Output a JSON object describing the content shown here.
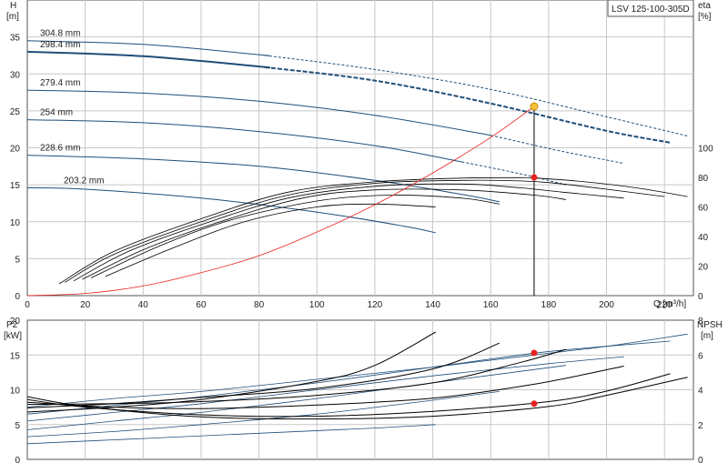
{
  "title_box": "LSV 125-100-305D",
  "top": {
    "y_left_label_1": "H",
    "y_left_label_2": "[m]",
    "y_right_label_1": "eta",
    "y_right_label_2": "[%]",
    "x_label": "Q [m³/h]"
  },
  "bottom": {
    "y_left_label_1": "P2",
    "y_left_label_2": "[kW]",
    "y_right_label_1": "NPSH",
    "y_right_label_2": "[m]"
  },
  "colors": {
    "head_curve": "#1f4e79",
    "duty_line": "#e8221f",
    "efficiency_curve": "#000000",
    "duty_point_fill": "#f6c23e",
    "grid": "#c8c8c8"
  },
  "chart_data": [
    {
      "type": "line",
      "panel": "head-efficiency",
      "xlim": [
        0,
        230
      ],
      "x_ticks": [
        0,
        20,
        40,
        60,
        80,
        100,
        120,
        140,
        160,
        180,
        200,
        220
      ],
      "ylim": [
        0,
        40
      ],
      "y_ticks": [
        0,
        5,
        10,
        15,
        20,
        25,
        30,
        35
      ],
      "y2lim": [
        0,
        200
      ],
      "y2_ticks": [
        0,
        20,
        40,
        60,
        80,
        100
      ],
      "grid": true,
      "series": [
        {
          "name": "304.8 mm",
          "kind": "head",
          "x": [
            0,
            40,
            80,
            120,
            160,
            200,
            228
          ],
          "y": [
            34.5,
            34.0,
            32.6,
            30.6,
            27.9,
            24.2,
            21.6
          ],
          "solid_until": 82
        },
        {
          "name": "298.4 mm",
          "kind": "head",
          "x": [
            0,
            40,
            80,
            120,
            160,
            200,
            222
          ],
          "y": [
            33.0,
            32.4,
            31.0,
            29.1,
            26.0,
            22.3,
            20.7
          ],
          "solid_until": 82,
          "highlight": true
        },
        {
          "name": "279.4 mm",
          "kind": "head",
          "x": [
            0,
            40,
            80,
            120,
            160,
            185,
            206
          ],
          "y": [
            27.8,
            27.4,
            26.3,
            24.4,
            21.7,
            19.5,
            17.9
          ],
          "solid_until": 160
        },
        {
          "name": "254 mm",
          "kind": "head",
          "x": [
            0,
            40,
            80,
            120,
            150,
            170,
            186
          ],
          "y": [
            23.8,
            23.4,
            22.2,
            20.3,
            18.1,
            16.5,
            15.0
          ],
          "solid_until": 150
        },
        {
          "name": "228.6 mm",
          "kind": "head",
          "x": [
            0,
            40,
            80,
            120,
            150,
            163
          ],
          "y": [
            19.0,
            18.5,
            17.5,
            15.6,
            13.7,
            12.7
          ]
        },
        {
          "name": "203.2 mm",
          "kind": "head",
          "x": [
            0,
            20,
            60,
            100,
            130,
            141
          ],
          "y": [
            14.6,
            14.4,
            13.2,
            11.3,
            9.4,
            8.5
          ]
        },
        {
          "kind": "efficiency",
          "x": [
            11,
            30,
            60,
            90,
            120,
            150,
            170,
            175,
            190,
            210,
            228
          ],
          "y": [
            8,
            30,
            52,
            70,
            77,
            79.5,
            79.8,
            79.6,
            77.5,
            73,
            67
          ]
        },
        {
          "kind": "efficiency",
          "x": [
            13,
            30,
            60,
            90,
            120,
            150,
            170,
            180,
            200,
            220
          ],
          "y": [
            9,
            28,
            50,
            68,
            76,
            78,
            77.6,
            76.5,
            72,
            67
          ]
        },
        {
          "kind": "efficiency",
          "x": [
            16,
            35,
            60,
            90,
            120,
            150,
            170,
            185,
            206
          ],
          "y": [
            10,
            30,
            48,
            66,
            74,
            75.5,
            73,
            70,
            66
          ]
        },
        {
          "kind": "efficiency",
          "x": [
            19,
            40,
            65,
            95,
            120,
            150,
            175,
            186
          ],
          "y": [
            11,
            31,
            49,
            66,
            71.5,
            71.5,
            68,
            65
          ]
        },
        {
          "kind": "efficiency",
          "x": [
            22,
            45,
            70,
            100,
            125,
            150,
            163
          ],
          "y": [
            12,
            33,
            51,
            64,
            68,
            66,
            62
          ]
        },
        {
          "kind": "efficiency",
          "x": [
            27,
            50,
            75,
            100,
            120,
            141
          ],
          "y": [
            13,
            32,
            50,
            60,
            62,
            60
          ]
        },
        {
          "kind": "system-curve",
          "x": [
            0,
            20,
            40,
            60,
            80,
            100,
            120,
            140,
            160,
            175
          ],
          "y": [
            0,
            0.3,
            1.3,
            3.1,
            5.4,
            8.6,
            12.3,
            16.6,
            21.4,
            25.6
          ]
        },
        {
          "kind": "duty-point",
          "x": [
            175
          ],
          "y": [
            25.6
          ],
          "eta": 80
        }
      ]
    },
    {
      "type": "line",
      "panel": "power-npsh",
      "xlim": [
        0,
        230
      ],
      "x_ticks": [
        0,
        20,
        40,
        60,
        80,
        100,
        120,
        140,
        160,
        180,
        200,
        220
      ],
      "ylim": [
        0,
        20
      ],
      "y_ticks": [
        0,
        5,
        10,
        15,
        20
      ],
      "y2lim": [
        0,
        8
      ],
      "y2_ticks": [
        0,
        2,
        4,
        6,
        8
      ],
      "grid": true,
      "series": [
        {
          "kind": "npsh",
          "x": [
            0,
            30,
            60,
            100,
            140,
            175,
            200,
            228
          ],
          "y": [
            3.0,
            3.5,
            3.9,
            4.6,
            5.3,
            6.0,
            6.5,
            7.2
          ]
        },
        {
          "kind": "npsh",
          "x": [
            0,
            30,
            60,
            100,
            140,
            175,
            200,
            222
          ],
          "y": [
            2.6,
            3.1,
            3.6,
            4.4,
            5.3,
            6.1,
            6.5,
            6.8
          ]
        },
        {
          "kind": "npsh",
          "x": [
            0,
            30,
            60,
            100,
            140,
            180,
            206
          ],
          "y": [
            2.2,
            2.7,
            3.2,
            4.0,
            4.8,
            5.5,
            5.9
          ]
        },
        {
          "kind": "npsh",
          "x": [
            0,
            30,
            60,
            100,
            140,
            186
          ],
          "y": [
            1.7,
            2.2,
            2.7,
            3.5,
            4.4,
            5.4
          ]
        },
        {
          "kind": "npsh",
          "x": [
            0,
            30,
            60,
            100,
            140,
            163
          ],
          "y": [
            1.3,
            1.6,
            2.0,
            2.6,
            3.4,
            3.9
          ]
        },
        {
          "kind": "npsh",
          "x": [
            0,
            40,
            80,
            120,
            141
          ],
          "y": [
            0.9,
            1.2,
            1.5,
            1.8,
            2.0
          ]
        },
        {
          "kind": "power",
          "x": [
            0,
            20,
            60,
            100,
            140,
            180,
            200,
            228
          ],
          "y": [
            9.0,
            7.6,
            6.1,
            5.8,
            6.2,
            7.6,
            9.2,
            11.8
          ]
        },
        {
          "kind": "power",
          "x": [
            0,
            20,
            60,
            100,
            140,
            180,
            200,
            222
          ],
          "y": [
            8.6,
            7.5,
            6.4,
            6.2,
            6.9,
            8.3,
            9.8,
            12.3
          ]
        },
        {
          "kind": "power",
          "x": [
            0,
            30,
            60,
            100,
            140,
            175,
            206
          ],
          "y": [
            8.2,
            7.5,
            7.3,
            7.8,
            8.8,
            10.8,
            13.4
          ]
        },
        {
          "kind": "power",
          "x": [
            0,
            30,
            60,
            100,
            140,
            170,
            186
          ],
          "y": [
            7.9,
            8.0,
            8.3,
            9.2,
            11.0,
            13.9,
            15.8
          ]
        },
        {
          "kind": "power",
          "x": [
            0,
            30,
            60,
            100,
            140,
            163
          ],
          "y": [
            7.4,
            8.0,
            8.9,
            10.2,
            13.0,
            16.7
          ]
        },
        {
          "kind": "power",
          "x": [
            0,
            30,
            60,
            100,
            120,
            141
          ],
          "y": [
            6.8,
            7.5,
            8.6,
            11.2,
            13.5,
            18.3
          ]
        },
        {
          "kind": "duty-point-power",
          "x": [
            175
          ],
          "y": [
            15.3
          ]
        },
        {
          "kind": "duty-point-npsh",
          "x": [
            175
          ],
          "y": [
            3.2
          ]
        }
      ]
    }
  ]
}
